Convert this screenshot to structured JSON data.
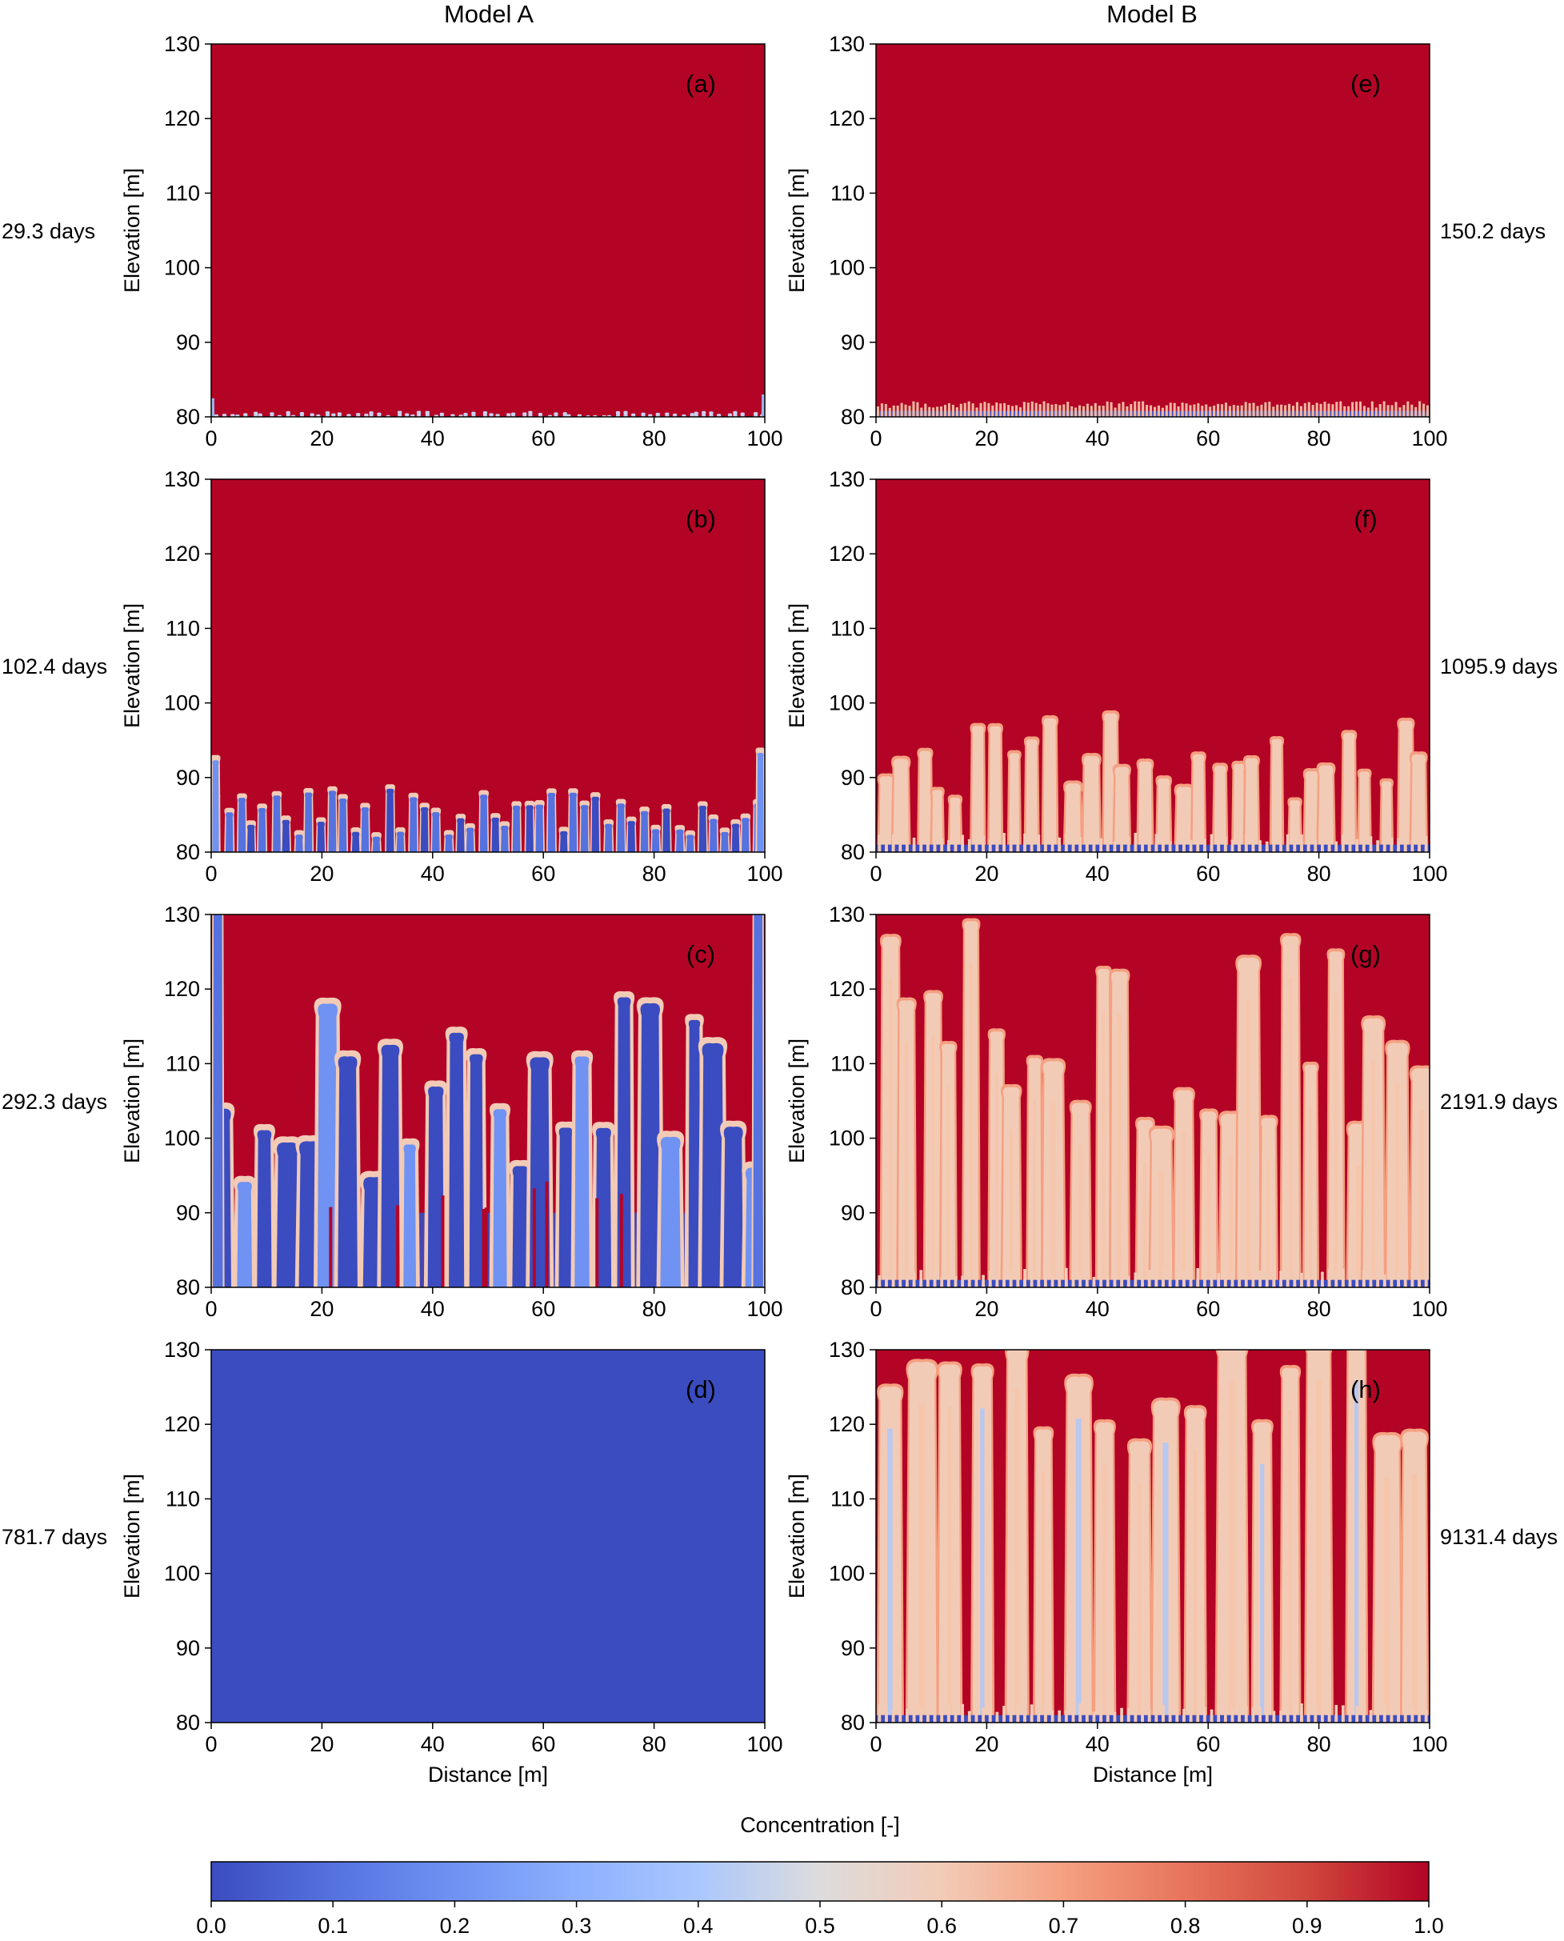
{
  "chart_data": {
    "type": "heatmap",
    "columns": [
      "Model A",
      "Model B"
    ],
    "panels": [
      {
        "label": "(a)",
        "model": "Model A",
        "time": "29.3 days",
        "pattern": "initial_fingers",
        "max_height_m": 82
      },
      {
        "label": "(b)",
        "model": "Model A",
        "time": "102.4 days",
        "pattern": "growing_fingers",
        "max_height_m": 94
      },
      {
        "label": "(c)",
        "model": "Model A",
        "time": "292.3 days",
        "pattern": "long_fingers",
        "max_height_m": 130
      },
      {
        "label": "(d)",
        "model": "Model A",
        "time": "781.7 days",
        "pattern": "uniform_low",
        "value": 0.0
      },
      {
        "label": "(e)",
        "model": "Model B",
        "time": "150.2 days",
        "pattern": "thin_boundary",
        "max_height_m": 82
      },
      {
        "label": "(f)",
        "model": "Model B",
        "time": "1095.9 days",
        "pattern": "growing_plumes",
        "max_height_m": 99
      },
      {
        "label": "(g)",
        "model": "Model B",
        "time": "2191.9 days",
        "pattern": "long_plumes",
        "max_height_m": 130
      },
      {
        "label": "(h)",
        "model": "Model B",
        "time": "9131.4 days",
        "pattern": "full_plumes",
        "max_height_m": 130
      }
    ],
    "xlabel": "Distance [m]",
    "ylabel": "Elevation [m]",
    "xlim": [
      0,
      100
    ],
    "ylim": [
      80,
      130
    ],
    "xticks": [
      "0",
      "20",
      "40",
      "60",
      "80",
      "100"
    ],
    "yticks": [
      "80",
      "90",
      "100",
      "110",
      "120",
      "130"
    ],
    "colorbar": {
      "label": "Concentration [-]",
      "range": [
        0.0,
        1.0
      ],
      "ticks": [
        "0.0",
        "0.1",
        "0.2",
        "0.3",
        "0.4",
        "0.5",
        "0.6",
        "0.7",
        "0.8",
        "0.9",
        "1.0"
      ],
      "colormap": "coolwarm"
    }
  },
  "colors": {
    "low": "#3b4cc0",
    "mid": "#dddddd",
    "high": "#b40426"
  }
}
